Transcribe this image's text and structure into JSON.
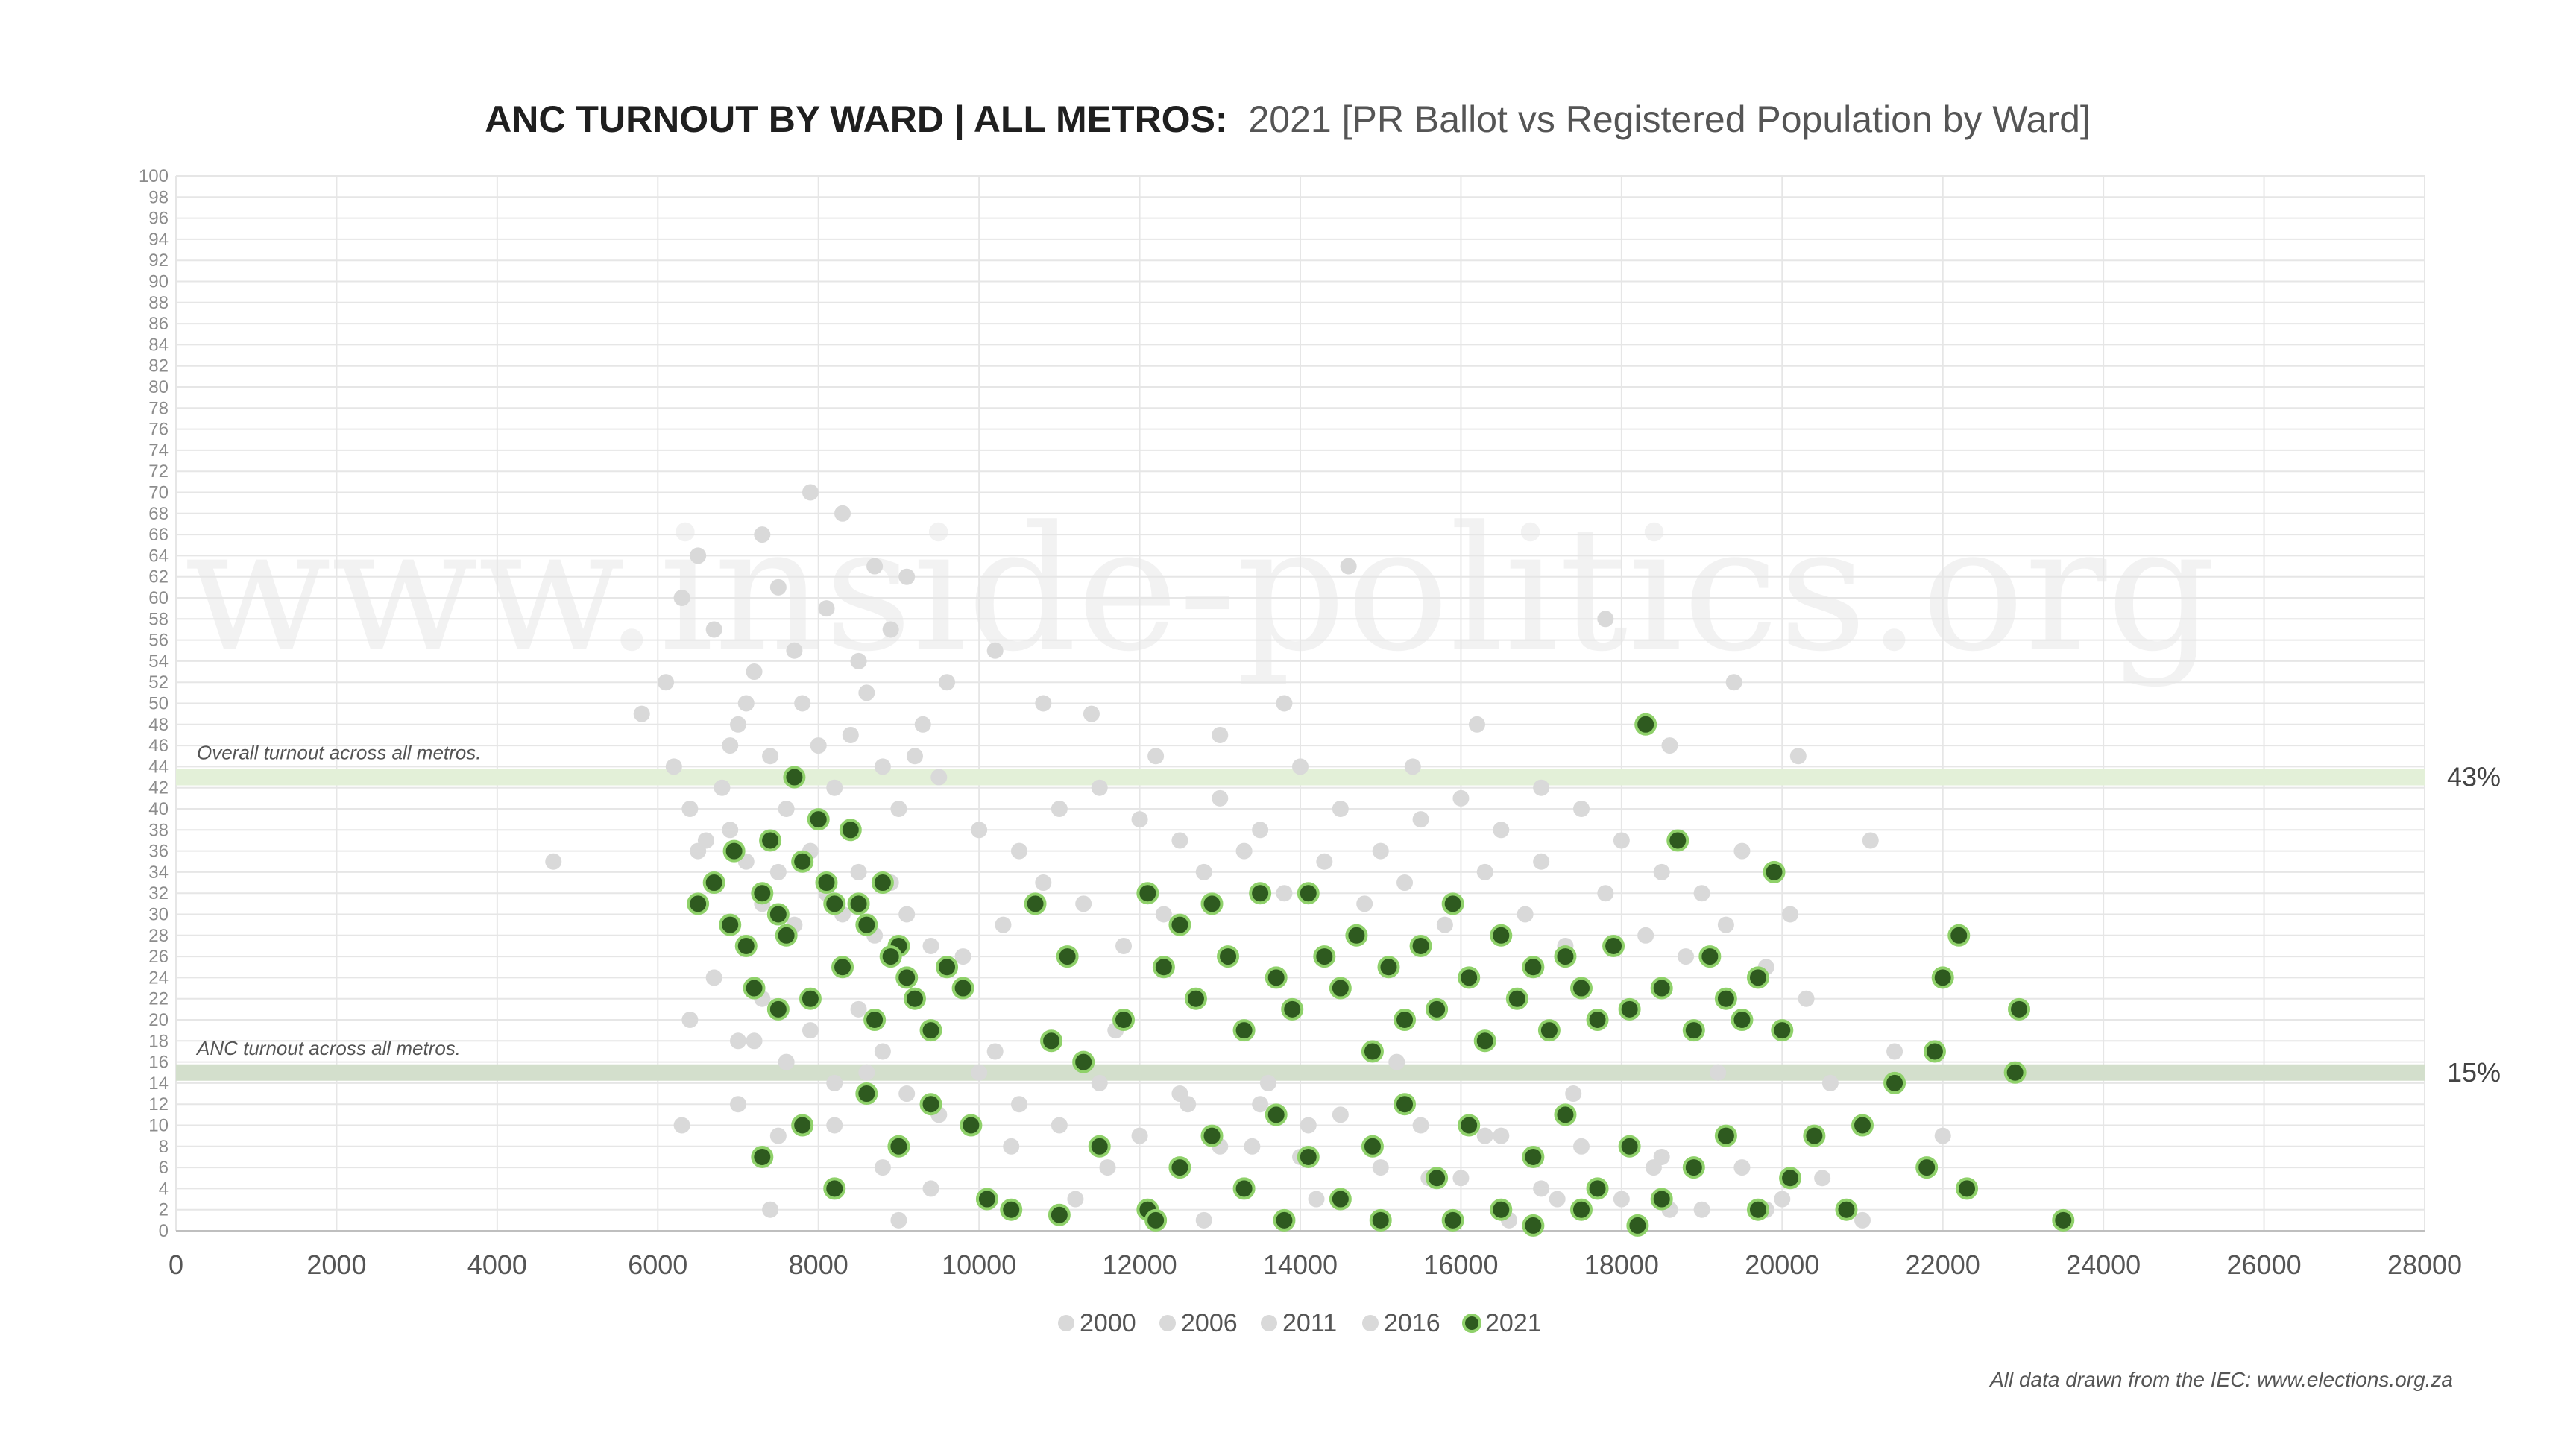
{
  "chart_data": {
    "type": "scatter",
    "title_bold": "ANC TURNOUT BY WARD | ALL METROS:",
    "title_rest": "2021 [PR Ballot vs Registered Population by Ward]",
    "watermark": "www.inside-politics.org",
    "source_note": "All data drawn from the IEC: www.elections.org.za",
    "xlim": [
      0,
      28000
    ],
    "ylim": [
      0,
      100
    ],
    "x_ticks": [
      "0",
      "2000",
      "4000",
      "6000",
      "8000",
      "10000",
      "12000",
      "14000",
      "16000",
      "18000",
      "20000",
      "22000",
      "24000",
      "26000",
      "28000"
    ],
    "y_ticks": [
      "0",
      "2",
      "4",
      "6",
      "8",
      "10",
      "12",
      "14",
      "16",
      "18",
      "20",
      "22",
      "24",
      "26",
      "28",
      "30",
      "32",
      "34",
      "36",
      "38",
      "40",
      "42",
      "44",
      "46",
      "48",
      "50",
      "52",
      "54",
      "56",
      "58",
      "60",
      "62",
      "64",
      "66",
      "68",
      "70",
      "72",
      "74",
      "76",
      "78",
      "80",
      "82",
      "84",
      "86",
      "88",
      "90",
      "92",
      "94",
      "96",
      "98",
      "100"
    ],
    "grid": true,
    "legend_position": "bottom",
    "reference_lines": [
      {
        "label": "Overall turnout across all metros.",
        "value": 43,
        "value_label": "43%",
        "color": "#e3f0d8"
      },
      {
        "label": "ANC turnout across all metros.",
        "value": 15,
        "value_label": "15%",
        "color": "#d3dfcc"
      }
    ],
    "series": [
      {
        "name": "2000",
        "color": "#d9d9d9",
        "points": [
          [
            6100,
            52
          ],
          [
            6300,
            60
          ],
          [
            6500,
            64
          ],
          [
            6700,
            57
          ],
          [
            6900,
            46
          ],
          [
            7100,
            50
          ],
          [
            7300,
            66
          ],
          [
            7500,
            61
          ],
          [
            7700,
            55
          ],
          [
            7900,
            70
          ],
          [
            8100,
            59
          ],
          [
            8300,
            68
          ],
          [
            8500,
            54
          ],
          [
            8700,
            63
          ],
          [
            8900,
            57
          ],
          [
            9100,
            62
          ],
          [
            9300,
            48
          ],
          [
            9600,
            52
          ],
          [
            10200,
            55
          ],
          [
            10800,
            50
          ],
          [
            11400,
            49
          ],
          [
            12200,
            45
          ],
          [
            13000,
            47
          ],
          [
            13800,
            50
          ],
          [
            14600,
            63
          ],
          [
            15400,
            44
          ],
          [
            16200,
            48
          ],
          [
            17000,
            42
          ],
          [
            17800,
            58
          ],
          [
            18600,
            46
          ],
          [
            19400,
            52
          ],
          [
            20200,
            45
          ],
          [
            7000,
            12
          ],
          [
            8200,
            10
          ],
          [
            9400,
            4
          ],
          [
            11600,
            6
          ],
          [
            13400,
            8
          ],
          [
            15600,
            5
          ],
          [
            17200,
            3
          ],
          [
            19800,
            2
          ]
        ]
      },
      {
        "name": "2006",
        "color": "#d9d9d9",
        "points": [
          [
            4700,
            35
          ],
          [
            5800,
            49
          ],
          [
            6200,
            44
          ],
          [
            6400,
            40
          ],
          [
            6600,
            37
          ],
          [
            6800,
            42
          ],
          [
            7000,
            48
          ],
          [
            7200,
            53
          ],
          [
            7400,
            45
          ],
          [
            7600,
            40
          ],
          [
            7800,
            50
          ],
          [
            8000,
            46
          ],
          [
            8200,
            42
          ],
          [
            8400,
            47
          ],
          [
            8600,
            51
          ],
          [
            8800,
            44
          ],
          [
            9000,
            40
          ],
          [
            9200,
            45
          ],
          [
            9500,
            43
          ],
          [
            10000,
            38
          ],
          [
            10500,
            36
          ],
          [
            11000,
            40
          ],
          [
            11500,
            42
          ],
          [
            12000,
            39
          ],
          [
            12500,
            37
          ],
          [
            13000,
            41
          ],
          [
            13500,
            38
          ],
          [
            14000,
            44
          ],
          [
            14500,
            40
          ],
          [
            15000,
            36
          ],
          [
            15500,
            39
          ],
          [
            16000,
            41
          ],
          [
            16500,
            38
          ],
          [
            17000,
            35
          ],
          [
            17500,
            40
          ],
          [
            18000,
            37
          ],
          [
            18500,
            34
          ],
          [
            19000,
            32
          ],
          [
            19500,
            36
          ],
          [
            20100,
            30
          ],
          [
            21100,
            37
          ],
          [
            6300,
            10
          ],
          [
            7500,
            9
          ],
          [
            8800,
            6
          ],
          [
            10400,
            8
          ],
          [
            12600,
            12
          ],
          [
            14100,
            10
          ],
          [
            16300,
            9
          ],
          [
            18400,
            6
          ],
          [
            20600,
            14
          ]
        ]
      },
      {
        "name": "2011",
        "color": "#d9d9d9",
        "points": [
          [
            6500,
            36
          ],
          [
            6700,
            33
          ],
          [
            6900,
            38
          ],
          [
            7100,
            35
          ],
          [
            7300,
            31
          ],
          [
            7500,
            34
          ],
          [
            7700,
            29
          ],
          [
            7900,
            36
          ],
          [
            8100,
            32
          ],
          [
            8300,
            30
          ],
          [
            8500,
            34
          ],
          [
            8700,
            28
          ],
          [
            8900,
            33
          ],
          [
            9100,
            30
          ],
          [
            9400,
            27
          ],
          [
            9800,
            26
          ],
          [
            10300,
            29
          ],
          [
            10800,
            33
          ],
          [
            11300,
            31
          ],
          [
            11800,
            27
          ],
          [
            12300,
            30
          ],
          [
            12800,
            34
          ],
          [
            13300,
            36
          ],
          [
            13800,
            32
          ],
          [
            14300,
            35
          ],
          [
            14800,
            31
          ],
          [
            15300,
            33
          ],
          [
            15800,
            29
          ],
          [
            16300,
            34
          ],
          [
            16800,
            30
          ],
          [
            17300,
            27
          ],
          [
            17800,
            32
          ],
          [
            18300,
            28
          ],
          [
            18800,
            26
          ],
          [
            19300,
            29
          ],
          [
            19800,
            25
          ],
          [
            20300,
            22
          ],
          [
            21400,
            17
          ],
          [
            22000,
            9
          ],
          [
            7200,
            18
          ],
          [
            8600,
            15
          ],
          [
            10200,
            17
          ],
          [
            11700,
            19
          ],
          [
            13600,
            14
          ],
          [
            15200,
            16
          ],
          [
            17400,
            13
          ],
          [
            19200,
            15
          ]
        ]
      },
      {
        "name": "2016",
        "color": "#d9d9d9",
        "points": [
          [
            6400,
            20
          ],
          [
            6700,
            24
          ],
          [
            7000,
            18
          ],
          [
            7300,
            22
          ],
          [
            7600,
            16
          ],
          [
            7900,
            19
          ],
          [
            8200,
            14
          ],
          [
            8500,
            21
          ],
          [
            8800,
            17
          ],
          [
            9100,
            13
          ],
          [
            9500,
            11
          ],
          [
            10000,
            15
          ],
          [
            10500,
            12
          ],
          [
            11000,
            10
          ],
          [
            11500,
            14
          ],
          [
            12000,
            9
          ],
          [
            12500,
            13
          ],
          [
            13000,
            8
          ],
          [
            13500,
            12
          ],
          [
            14000,
            7
          ],
          [
            14500,
            11
          ],
          [
            15000,
            6
          ],
          [
            15500,
            10
          ],
          [
            16000,
            5
          ],
          [
            16500,
            9
          ],
          [
            17000,
            4
          ],
          [
            17500,
            8
          ],
          [
            18000,
            3
          ],
          [
            18500,
            7
          ],
          [
            19000,
            2
          ],
          [
            19500,
            6
          ],
          [
            20000,
            3
          ],
          [
            20500,
            5
          ],
          [
            21000,
            1
          ],
          [
            7400,
            2
          ],
          [
            9000,
            1
          ],
          [
            11200,
            3
          ],
          [
            12800,
            1
          ],
          [
            14200,
            3
          ],
          [
            16600,
            1
          ],
          [
            18600,
            2
          ]
        ]
      },
      {
        "name": "2021",
        "color": "#2e5a1f",
        "points": [
          [
            6500,
            31
          ],
          [
            6700,
            33
          ],
          [
            6900,
            29
          ],
          [
            7100,
            27
          ],
          [
            7300,
            32
          ],
          [
            7500,
            30
          ],
          [
            7700,
            43
          ],
          [
            7800,
            35
          ],
          [
            8000,
            39
          ],
          [
            8200,
            31
          ],
          [
            8400,
            38
          ],
          [
            8600,
            29
          ],
          [
            8800,
            33
          ],
          [
            9000,
            27
          ],
          [
            7200,
            23
          ],
          [
            7500,
            21
          ],
          [
            7900,
            22
          ],
          [
            8300,
            25
          ],
          [
            8700,
            20
          ],
          [
            9100,
            24
          ],
          [
            9400,
            19
          ],
          [
            9800,
            23
          ],
          [
            6950,
            36
          ],
          [
            7400,
            37
          ],
          [
            7600,
            28
          ],
          [
            8100,
            33
          ],
          [
            8500,
            31
          ],
          [
            8900,
            26
          ],
          [
            9200,
            22
          ],
          [
            9600,
            25
          ],
          [
            7300,
            7
          ],
          [
            7800,
            10
          ],
          [
            8200,
            4
          ],
          [
            8600,
            13
          ],
          [
            9000,
            8
          ],
          [
            9400,
            12
          ],
          [
            9900,
            10
          ],
          [
            10100,
            3
          ],
          [
            10400,
            2
          ],
          [
            10700,
            31
          ],
          [
            10900,
            18
          ],
          [
            11100,
            26
          ],
          [
            11300,
            16
          ],
          [
            11500,
            8
          ],
          [
            11800,
            20
          ],
          [
            12100,
            32
          ],
          [
            12300,
            25
          ],
          [
            12500,
            29
          ],
          [
            12700,
            22
          ],
          [
            12900,
            31
          ],
          [
            13100,
            26
          ],
          [
            13300,
            19
          ],
          [
            13500,
            32
          ],
          [
            13700,
            24
          ],
          [
            13900,
            21
          ],
          [
            14100,
            32
          ],
          [
            14300,
            26
          ],
          [
            14500,
            23
          ],
          [
            14700,
            28
          ],
          [
            14900,
            17
          ],
          [
            15100,
            25
          ],
          [
            15300,
            20
          ],
          [
            15500,
            27
          ],
          [
            15700,
            21
          ],
          [
            15900,
            31
          ],
          [
            16100,
            24
          ],
          [
            16300,
            18
          ],
          [
            16500,
            28
          ],
          [
            16700,
            22
          ],
          [
            16900,
            25
          ],
          [
            17100,
            19
          ],
          [
            17300,
            26
          ],
          [
            17500,
            23
          ],
          [
            17700,
            20
          ],
          [
            17900,
            27
          ],
          [
            18100,
            21
          ],
          [
            18300,
            48
          ],
          [
            18500,
            23
          ],
          [
            18700,
            37
          ],
          [
            18900,
            19
          ],
          [
            19100,
            26
          ],
          [
            19300,
            22
          ],
          [
            19500,
            20
          ],
          [
            19700,
            24
          ],
          [
            19900,
            34
          ],
          [
            20000,
            19
          ],
          [
            21900,
            17
          ],
          [
            22000,
            24
          ],
          [
            22200,
            28
          ],
          [
            22900,
            15
          ],
          [
            22950,
            21
          ],
          [
            23500,
            1
          ],
          [
            12100,
            2
          ],
          [
            12500,
            6
          ],
          [
            12900,
            9
          ],
          [
            13300,
            4
          ],
          [
            13700,
            11
          ],
          [
            14100,
            7
          ],
          [
            14500,
            3
          ],
          [
            14900,
            8
          ],
          [
            15300,
            12
          ],
          [
            15700,
            5
          ],
          [
            16100,
            10
          ],
          [
            16500,
            2
          ],
          [
            16900,
            7
          ],
          [
            17300,
            11
          ],
          [
            17700,
            4
          ],
          [
            18100,
            8
          ],
          [
            18500,
            3
          ],
          [
            18900,
            6
          ],
          [
            19300,
            9
          ],
          [
            19700,
            2
          ],
          [
            20100,
            5
          ],
          [
            20400,
            9
          ],
          [
            20800,
            2
          ],
          [
            21000,
            10
          ],
          [
            21400,
            14
          ],
          [
            21800,
            6
          ],
          [
            22300,
            4
          ],
          [
            16900,
            0.5
          ],
          [
            18200,
            0.5
          ],
          [
            11000,
            1.5
          ],
          [
            12200,
            1
          ],
          [
            13800,
            1
          ],
          [
            15000,
            1
          ],
          [
            15900,
            1
          ],
          [
            17500,
            2
          ]
        ]
      }
    ]
  }
}
